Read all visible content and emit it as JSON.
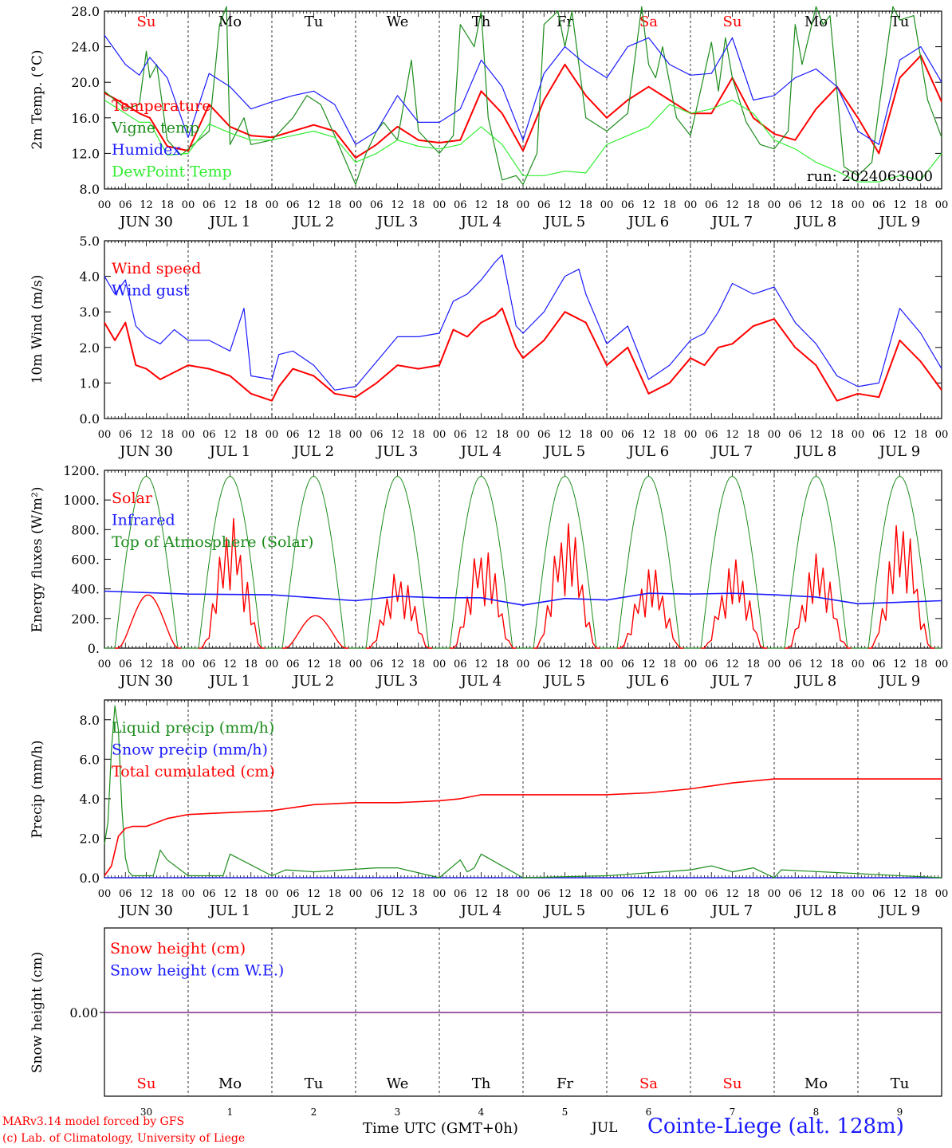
{
  "colors": {
    "red": "#ff0000",
    "dark_green": "#1c8c1c",
    "blue": "#1a1aff",
    "light_green": "#33ee33",
    "purple": "#7a2a8a",
    "black": "#000000"
  },
  "time_axis": {
    "hour_ticks": [
      "00",
      "06",
      "12",
      "18",
      "00",
      "06",
      "12",
      "18",
      "00",
      "06",
      "12",
      "18",
      "00",
      "06",
      "12",
      "18",
      "00",
      "06",
      "12",
      "18",
      "00",
      "06",
      "12",
      "18",
      "00",
      "06",
      "12",
      "18",
      "00",
      "06",
      "12",
      "18",
      "00",
      "06",
      "12",
      "18",
      "00",
      "06",
      "12",
      "18",
      "00"
    ],
    "day_labels": [
      "JUN 30",
      "JUL  1",
      "JUL  2",
      "JUL  3",
      "JUL  4",
      "JUL  5",
      "JUL  6",
      "JUL  7",
      "JUL  8",
      "JUL  9"
    ],
    "weekdays": [
      {
        "label": "Su",
        "weekend": true
      },
      {
        "label": "Mo",
        "weekend": false
      },
      {
        "label": "Tu",
        "weekend": false
      },
      {
        "label": "We",
        "weekend": false
      },
      {
        "label": "Th",
        "weekend": false
      },
      {
        "label": "Fr",
        "weekend": false
      },
      {
        "label": "Sa",
        "weekend": true
      },
      {
        "label": "Su",
        "weekend": true
      },
      {
        "label": "Mo",
        "weekend": false
      },
      {
        "label": "Tu",
        "weekend": false
      }
    ],
    "day_numbers": [
      "30",
      "1",
      "2",
      "3",
      "4",
      "5",
      "6",
      "7",
      "8",
      "9"
    ],
    "n_hours": 240
  },
  "chart_data": [
    {
      "type": "line",
      "ylabel": "2m Temp. (°C)",
      "ylim": [
        8,
        28
      ],
      "ytick_labels": [
        "8.0",
        "12.0",
        "16.0",
        "20.0",
        "24.0",
        "28.0"
      ],
      "run_label": "run: 2024063000",
      "x_unit": "hours since 2024-06-30 00 UTC",
      "series": [
        {
          "name": "Temperature",
          "color": "#ff0000",
          "x": [
            0,
            6,
            10,
            13,
            18,
            24,
            30,
            36,
            42,
            48,
            54,
            60,
            66,
            72,
            78,
            84,
            90,
            96,
            102,
            108,
            114,
            120,
            126,
            132,
            138,
            144,
            150,
            156,
            162,
            168,
            174,
            180,
            186,
            192,
            198,
            204,
            210,
            216,
            222,
            228,
            234,
            240
          ],
          "y": [
            18.8,
            17.5,
            16.5,
            16.0,
            12.8,
            12.3,
            17.5,
            15.0,
            14.0,
            13.8,
            14.5,
            15.2,
            14.5,
            11.5,
            13.0,
            15.0,
            13.5,
            13.2,
            13.5,
            19.0,
            16.5,
            12.3,
            18.0,
            22.0,
            18.5,
            16.0,
            18.0,
            19.5,
            18.0,
            16.5,
            16.5,
            20.5,
            16.0,
            14.2,
            13.5,
            17.0,
            19.5,
            16.0,
            12.0,
            20.5,
            23.0,
            17.8
          ]
        },
        {
          "name": "Vigne temp",
          "color": "#1c8c1c",
          "x": [
            0,
            6,
            10,
            12,
            13,
            15,
            18,
            22,
            24,
            30,
            33,
            35,
            36,
            40,
            42,
            48,
            54,
            58,
            62,
            66,
            72,
            75,
            78,
            80,
            84,
            88,
            90,
            96,
            100,
            102,
            106,
            108,
            110,
            114,
            118,
            120,
            124,
            126,
            130,
            132,
            134,
            138,
            144,
            150,
            154,
            156,
            158,
            160,
            164,
            168,
            172,
            174,
            176,
            178,
            180,
            184,
            188,
            192,
            196,
            198,
            200,
            204,
            206,
            208,
            212,
            216,
            220,
            222,
            226,
            228,
            232,
            236,
            240
          ],
          "y": [
            19.0,
            17.0,
            17.5,
            23.5,
            20.5,
            22.0,
            13.5,
            11.8,
            12.5,
            14.5,
            26.5,
            28.5,
            13.0,
            16.0,
            13.0,
            13.5,
            16.0,
            18.5,
            17.5,
            14.0,
            8.5,
            12.0,
            14.5,
            15.5,
            13.5,
            22.5,
            14.5,
            12.0,
            14.0,
            26.5,
            24.0,
            28.0,
            16.0,
            9.0,
            9.5,
            8.5,
            12.0,
            26.5,
            28.0,
            24.0,
            28.0,
            16.0,
            14.5,
            16.5,
            28.5,
            22.0,
            20.5,
            24.0,
            16.0,
            14.0,
            21.0,
            24.5,
            19.0,
            25.0,
            20.5,
            15.5,
            13.0,
            12.5,
            14.5,
            26.5,
            22.0,
            28.5,
            26.5,
            27.5,
            10.5,
            9.5,
            11.0,
            17.0,
            28.5,
            27.0,
            27.5,
            18.0,
            13.8
          ]
        },
        {
          "name": "Humidex",
          "color": "#1a1aff",
          "x": [
            0,
            6,
            10,
            13,
            18,
            24,
            30,
            36,
            42,
            48,
            54,
            60,
            66,
            72,
            78,
            84,
            90,
            96,
            102,
            108,
            114,
            120,
            126,
            132,
            138,
            144,
            150,
            156,
            162,
            168,
            174,
            180,
            186,
            192,
            198,
            204,
            210,
            216,
            222,
            228,
            234,
            240
          ],
          "y": [
            25.3,
            22.0,
            20.8,
            22.8,
            20.5,
            13.8,
            21.0,
            19.5,
            17.0,
            17.8,
            18.5,
            19.0,
            17.5,
            13.0,
            14.5,
            18.5,
            15.5,
            15.5,
            17.0,
            22.5,
            19.5,
            13.5,
            21.0,
            24.0,
            22.0,
            20.5,
            24.0,
            25.0,
            22.0,
            20.8,
            21.0,
            25.0,
            18.0,
            18.5,
            20.5,
            21.5,
            19.5,
            14.5,
            13.0,
            22.5,
            24.0,
            20.0
          ]
        },
        {
          "name": "DewPoint Temp",
          "color": "#33ee33",
          "x": [
            0,
            6,
            10,
            13,
            18,
            24,
            30,
            36,
            42,
            48,
            54,
            60,
            66,
            72,
            78,
            84,
            90,
            96,
            102,
            108,
            114,
            120,
            126,
            132,
            138,
            144,
            150,
            156,
            162,
            168,
            174,
            180,
            186,
            192,
            198,
            204,
            210,
            216,
            222,
            228,
            234,
            240
          ],
          "y": [
            18.0,
            16.5,
            15.5,
            15.5,
            11.8,
            12.0,
            15.3,
            14.3,
            13.5,
            13.5,
            14.0,
            14.5,
            13.8,
            11.0,
            12.0,
            13.5,
            12.8,
            12.5,
            13.0,
            15.0,
            13.0,
            9.5,
            9.5,
            10.0,
            9.8,
            13.0,
            14.0,
            15.0,
            17.5,
            16.5,
            17.0,
            18.0,
            16.5,
            13.5,
            12.5,
            11.0,
            10.0,
            8.8,
            8.8,
            9.5,
            9.0,
            12.0
          ]
        }
      ]
    },
    {
      "type": "line",
      "ylabel": "10m Wind (m/s)",
      "ylim": [
        0,
        5
      ],
      "ytick_labels": [
        "0.0",
        "1.0",
        "2.0",
        "3.0",
        "4.0",
        "5.0"
      ],
      "series": [
        {
          "name": "Wind speed",
          "color": "#ff0000",
          "x": [
            0,
            3,
            6,
            9,
            12,
            16,
            20,
            24,
            30,
            36,
            42,
            48,
            50,
            54,
            60,
            66,
            72,
            78,
            84,
            90,
            96,
            100,
            104,
            108,
            112,
            114,
            118,
            120,
            126,
            132,
            138,
            144,
            150,
            156,
            162,
            168,
            172,
            176,
            180,
            186,
            192,
            198,
            204,
            210,
            216,
            222,
            228,
            234,
            240
          ],
          "y": [
            2.7,
            2.2,
            2.7,
            1.5,
            1.4,
            1.1,
            1.3,
            1.5,
            1.4,
            1.2,
            0.7,
            0.5,
            0.9,
            1.4,
            1.2,
            0.7,
            0.6,
            1.0,
            1.5,
            1.4,
            1.5,
            2.5,
            2.3,
            2.7,
            2.9,
            3.1,
            2.0,
            1.7,
            2.2,
            3.0,
            2.7,
            1.5,
            2.0,
            0.7,
            1.0,
            1.7,
            1.5,
            2.0,
            2.1,
            2.6,
            2.8,
            2.0,
            1.5,
            0.5,
            0.7,
            0.6,
            2.2,
            1.6,
            0.8
          ]
        },
        {
          "name": "Wind gust",
          "color": "#1a1aff",
          "x": [
            0,
            3,
            6,
            9,
            12,
            16,
            20,
            24,
            30,
            36,
            40,
            42,
            48,
            50,
            54,
            60,
            66,
            72,
            78,
            84,
            90,
            96,
            100,
            104,
            108,
            112,
            114,
            118,
            120,
            126,
            132,
            136,
            138,
            144,
            150,
            156,
            162,
            168,
            172,
            176,
            180,
            186,
            192,
            198,
            204,
            210,
            216,
            222,
            228,
            234,
            240
          ],
          "y": [
            4.0,
            3.5,
            3.9,
            2.6,
            2.3,
            2.1,
            2.5,
            2.2,
            2.2,
            1.9,
            3.1,
            1.2,
            1.1,
            1.8,
            1.9,
            1.5,
            0.8,
            0.9,
            1.6,
            2.3,
            2.3,
            2.4,
            3.3,
            3.5,
            3.9,
            4.4,
            4.6,
            2.6,
            2.4,
            3.0,
            4.0,
            4.2,
            3.5,
            2.1,
            2.6,
            1.1,
            1.5,
            2.2,
            2.4,
            3.0,
            3.8,
            3.5,
            3.7,
            2.7,
            2.1,
            1.2,
            0.9,
            1.0,
            3.1,
            2.4,
            1.4
          ]
        }
      ]
    },
    {
      "type": "line",
      "ylabel": "Energy fluxes (W/m²)",
      "ylim": [
        0,
        1200
      ],
      "ytick_labels": [
        "0.",
        "200.",
        "400.",
        "600.",
        "800.",
        "1000.",
        "1200."
      ],
      "series": [
        {
          "name": "Solar",
          "color": "#ff0000",
          "kind": "daily_peaks",
          "day_peaks": [
            360,
            880,
            220,
            530,
            720,
            890,
            560,
            600,
            640,
            880
          ]
        },
        {
          "name": "Infrared",
          "color": "#1a1aff",
          "x": [
            0,
            24,
            48,
            72,
            84,
            96,
            108,
            120,
            132,
            144,
            156,
            168,
            180,
            192,
            204,
            216,
            228,
            240
          ],
          "y": [
            385,
            365,
            360,
            320,
            350,
            340,
            340,
            290,
            335,
            325,
            370,
            365,
            370,
            360,
            345,
            300,
            310,
            320
          ]
        },
        {
          "name": "Top of Atmosphere (Solar)",
          "color": "#1c8c1c",
          "kind": "daily_bell",
          "peak": 1160,
          "rise_hour": 3,
          "set_hour": 21
        }
      ]
    },
    {
      "type": "line",
      "ylabel": "Precip (mm/h)",
      "ylim": [
        0,
        9
      ],
      "ytick_labels": [
        "0.0",
        "2.0",
        "4.0",
        "6.0",
        "8.0"
      ],
      "series": [
        {
          "name": "Liquid precip (mm/h)",
          "color": "#1c8c1c",
          "x": [
            0,
            1,
            2,
            3,
            4,
            5,
            6,
            7,
            8,
            10,
            14,
            16,
            18,
            24,
            34,
            36,
            48,
            52,
            60,
            78,
            84,
            96,
            102,
            104,
            106,
            108,
            120,
            144,
            160,
            168,
            174,
            180,
            186,
            192,
            194,
            240
          ],
          "y": [
            1.7,
            2.8,
            6.5,
            8.7,
            7.5,
            3.5,
            1.0,
            0.3,
            0.1,
            0.1,
            0.1,
            1.4,
            0.9,
            0.1,
            0.1,
            1.2,
            0.1,
            0.4,
            0.3,
            0.5,
            0.5,
            0.0,
            0.9,
            0.3,
            0.5,
            1.2,
            0.0,
            0.1,
            0.3,
            0.4,
            0.6,
            0.3,
            0.5,
            0.0,
            0.4,
            0.0
          ]
        },
        {
          "name": "Snow precip (mm/h)",
          "color": "#1a1aff",
          "x": [
            0,
            240
          ],
          "y": [
            0,
            0
          ]
        },
        {
          "name": "Total cumulated (cm)",
          "color": "#ff0000",
          "x": [
            0,
            2,
            4,
            6,
            8,
            12,
            18,
            24,
            36,
            48,
            60,
            72,
            84,
            96,
            102,
            108,
            120,
            144,
            156,
            168,
            180,
            192,
            240
          ],
          "y": [
            0.1,
            0.6,
            2.1,
            2.5,
            2.6,
            2.6,
            3.0,
            3.2,
            3.3,
            3.4,
            3.7,
            3.8,
            3.8,
            3.9,
            4.0,
            4.2,
            4.2,
            4.2,
            4.3,
            4.5,
            4.8,
            5.0,
            5.0
          ]
        }
      ]
    },
    {
      "type": "line",
      "ylabel": "Snow height (cm)",
      "ytick_labels": [
        "0.00"
      ],
      "series": [
        {
          "name": "Snow height (cm)",
          "color": "#ff0000",
          "x": [
            0,
            240
          ],
          "y": [
            0,
            0
          ]
        },
        {
          "name": "Snow height (cm W.E.)",
          "color": "#1a1aff",
          "x": [
            0,
            240
          ],
          "y": [
            0,
            0
          ]
        }
      ]
    }
  ],
  "footer": {
    "credit_line1": "MARv3.14 model forced by GFS",
    "credit_line2": "(c) Lab. of Climatology, University of Liege",
    "time_label": "Time UTC (GMT+0h)",
    "month_label": "JUL",
    "station": "Cointe-Liege (alt. 128m)"
  }
}
